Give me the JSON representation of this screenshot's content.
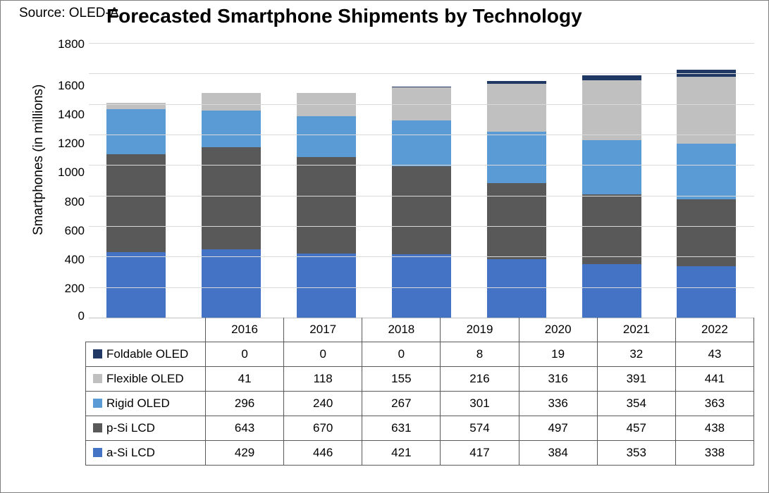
{
  "source_label": "Source:\nOLED-A",
  "title": "Forecasted Smartphone Shipments by Technology",
  "ylabel": "Smartphones (in millions)",
  "chart": {
    "type": "bar-stacked",
    "categories": [
      "2016",
      "2017",
      "2018",
      "2019",
      "2020",
      "2021",
      "2022"
    ],
    "series": [
      {
        "name": "a-Si LCD",
        "color": "#4472c4",
        "values": [
          429,
          446,
          421,
          417,
          384,
          353,
          338
        ]
      },
      {
        "name": "p-Si LCD",
        "color": "#595959",
        "values": [
          643,
          670,
          631,
          574,
          497,
          457,
          438
        ]
      },
      {
        "name": "Rigid OLED",
        "color": "#5b9bd5",
        "values": [
          296,
          240,
          267,
          301,
          336,
          354,
          363
        ]
      },
      {
        "name": "Flexible OLED",
        "color": "#c0c0c0",
        "values": [
          41,
          118,
          155,
          216,
          316,
          391,
          441
        ]
      },
      {
        "name": "Foldable OLED",
        "color": "#1f3864",
        "values": [
          0,
          0,
          0,
          8,
          19,
          32,
          43
        ]
      }
    ],
    "ylim": [
      0,
      1800
    ],
    "ytick_step": 200,
    "grid_color": "#d9d9d9",
    "background_color": "#ffffff",
    "bar_width": 0.65,
    "title_fontsize": 28,
    "label_fontsize": 19,
    "tick_fontsize": 17,
    "table_border_color": "#595959"
  }
}
